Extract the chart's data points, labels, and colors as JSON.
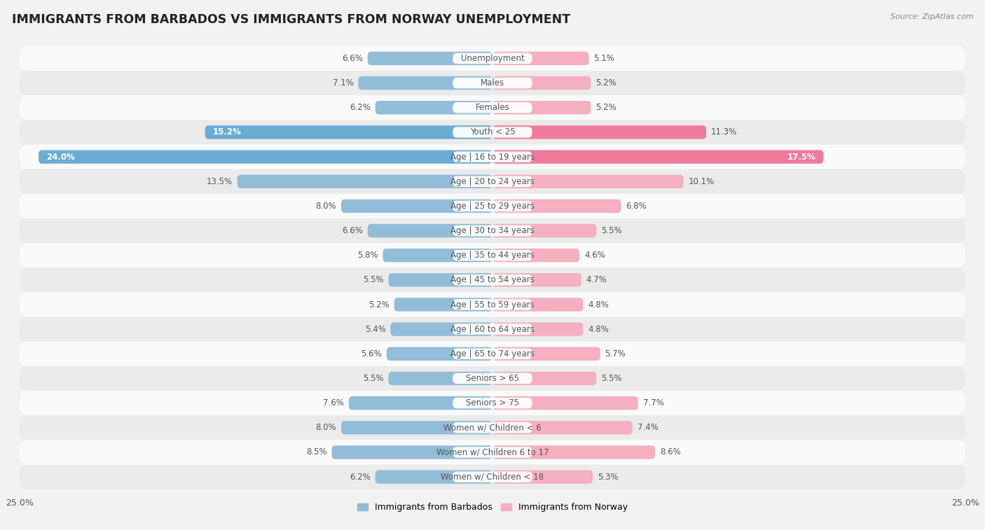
{
  "title": "IMMIGRANTS FROM BARBADOS VS IMMIGRANTS FROM NORWAY UNEMPLOYMENT",
  "source": "Source: ZipAtlas.com",
  "categories": [
    "Unemployment",
    "Males",
    "Females",
    "Youth < 25",
    "Age | 16 to 19 years",
    "Age | 20 to 24 years",
    "Age | 25 to 29 years",
    "Age | 30 to 34 years",
    "Age | 35 to 44 years",
    "Age | 45 to 54 years",
    "Age | 55 to 59 years",
    "Age | 60 to 64 years",
    "Age | 65 to 74 years",
    "Seniors > 65",
    "Seniors > 75",
    "Women w/ Children < 6",
    "Women w/ Children 6 to 17",
    "Women w/ Children < 18"
  ],
  "barbados_values": [
    6.6,
    7.1,
    6.2,
    15.2,
    24.0,
    13.5,
    8.0,
    6.6,
    5.8,
    5.5,
    5.2,
    5.4,
    5.6,
    5.5,
    7.6,
    8.0,
    8.5,
    6.2
  ],
  "norway_values": [
    5.1,
    5.2,
    5.2,
    11.3,
    17.5,
    10.1,
    6.8,
    5.5,
    4.6,
    4.7,
    4.8,
    4.8,
    5.7,
    5.5,
    7.7,
    7.4,
    8.6,
    5.3
  ],
  "barbados_color": "#92bdd9",
  "barbados_color_dark": "#6aacd4",
  "norway_color": "#f4afc0",
  "norway_color_dark": "#f07a9a",
  "barbados_label": "Immigrants from Barbados",
  "norway_label": "Immigrants from Norway",
  "xlim": 25.0,
  "background_color": "#f2f2f2",
  "row_colors_odd": "#fafafa",
  "row_colors_even": "#ebebeb",
  "title_fontsize": 12.5,
  "label_fontsize": 8.5,
  "value_fontsize": 8.5,
  "highlight_rows": [
    3,
    4
  ],
  "white_label_text": "#555555",
  "axis_label_color": "#555555"
}
